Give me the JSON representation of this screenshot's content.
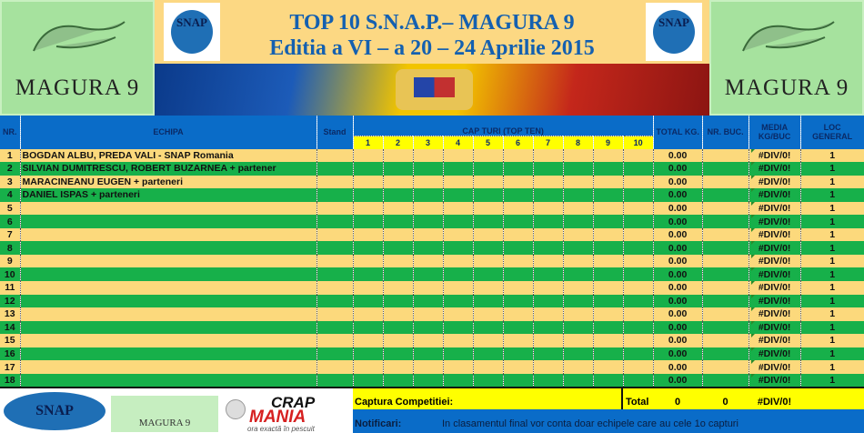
{
  "banner": {
    "title_line1": "TOP 10  S.N.A.P.– MAGURA 9",
    "title_line2": "Editia a VI – a 20 – 24 Aprilie  2015",
    "left_logo": "MAGURA 9",
    "right_logo": "MAGURA 9",
    "snap_logo_text": "SNAP"
  },
  "table": {
    "headers": {
      "nr": "NR.",
      "echipa": "ECHIPA",
      "stand": "Stand",
      "capturi": "CAP TURI     (TOP TEN)",
      "total": "TOTAL KG.",
      "nr_buc": "NR. BUC.",
      "media": "MEDIA KG/BUC",
      "loc": "LOC GENERAL"
    },
    "capture_cols": [
      "1",
      "2",
      "3",
      "4",
      "5",
      "6",
      "7",
      "8",
      "9",
      "10"
    ],
    "rows": [
      {
        "nr": "1",
        "echipa": "BOGDAN ALBU, PREDA VALI  - SNAP Romania",
        "total": "0.00",
        "media": "#DIV/0!",
        "loc": "1"
      },
      {
        "nr": "2",
        "echipa": "SILVIAN DUMITRESCU, ROBERT BUZARNEA + partener",
        "total": "0.00",
        "media": "#DIV/0!",
        "loc": "1"
      },
      {
        "nr": "3",
        "echipa": "MARACINEANU EUGEN + parteneri",
        "total": "0.00",
        "media": "#DIV/0!",
        "loc": "1"
      },
      {
        "nr": "4",
        "echipa": "DANIEL ISPAS + parteneri",
        "total": "0.00",
        "media": "#DIV/0!",
        "loc": "1"
      },
      {
        "nr": "5",
        "echipa": "",
        "total": "0.00",
        "media": "#DIV/0!",
        "loc": "1"
      },
      {
        "nr": "6",
        "echipa": "",
        "total": "0.00",
        "media": "#DIV/0!",
        "loc": "1"
      },
      {
        "nr": "7",
        "echipa": "",
        "total": "0.00",
        "media": "#DIV/0!",
        "loc": "1"
      },
      {
        "nr": "8",
        "echipa": "",
        "total": "0.00",
        "media": "#DIV/0!",
        "loc": "1"
      },
      {
        "nr": "9",
        "echipa": "",
        "total": "0.00",
        "media": "#DIV/0!",
        "loc": "1"
      },
      {
        "nr": "10",
        "echipa": "",
        "total": "0.00",
        "media": "#DIV/0!",
        "loc": "1"
      },
      {
        "nr": "11",
        "echipa": "",
        "total": "0.00",
        "media": "#DIV/0!",
        "loc": "1"
      },
      {
        "nr": "12",
        "echipa": "",
        "total": "0.00",
        "media": "#DIV/0!",
        "loc": "1"
      },
      {
        "nr": "13",
        "echipa": "",
        "total": "0.00",
        "media": "#DIV/0!",
        "loc": "1"
      },
      {
        "nr": "14",
        "echipa": "",
        "total": "0.00",
        "media": "#DIV/0!",
        "loc": "1"
      },
      {
        "nr": "15",
        "echipa": "",
        "total": "0.00",
        "media": "#DIV/0!",
        "loc": "1"
      },
      {
        "nr": "16",
        "echipa": "",
        "total": "0.00",
        "media": "#DIV/0!",
        "loc": "1"
      },
      {
        "nr": "17",
        "echipa": "",
        "total": "0.00",
        "media": "#DIV/0!",
        "loc": "1"
      },
      {
        "nr": "18",
        "echipa": "",
        "total": "0.00",
        "media": "#DIV/0!",
        "loc": "1"
      }
    ]
  },
  "footer": {
    "captura_label": "Captura Competitiei:",
    "total_label": "Total",
    "total_kg": "0",
    "total_buc": "0",
    "media": "#DIV/0!",
    "notif_label": "Notificari:",
    "notif_text": "In clasamentul final vor conta doar echipele care au cele 1o capturi",
    "logo_magura": "MAGURA 9",
    "logo_crap": "CRAP",
    "logo_mania": "MANIA",
    "logo_tagline": "ora exactă în pescuit"
  },
  "colors": {
    "header_blue": "#0a6cc8",
    "row_tan": "#fcd97c",
    "row_green": "#17b04a",
    "highlight_yellow": "#ffff00"
  }
}
